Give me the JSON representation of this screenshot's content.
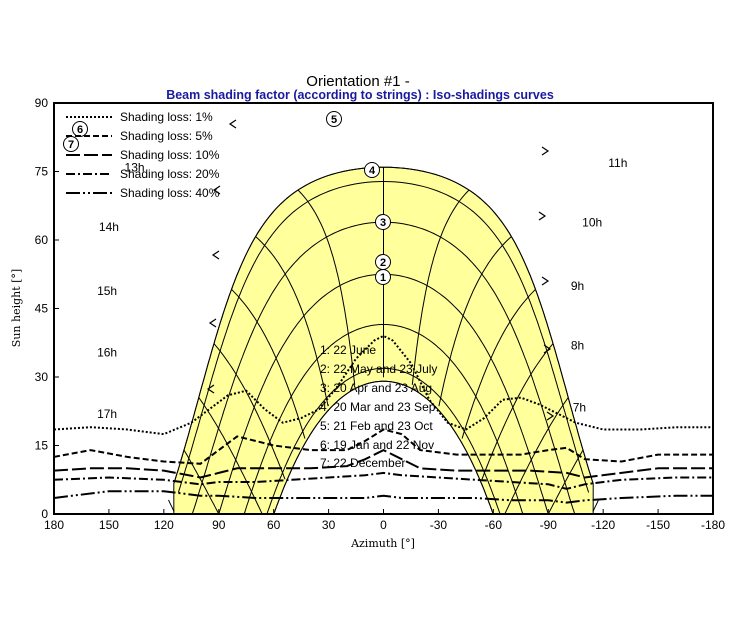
{
  "chart_data": {
    "type": "line",
    "title": "Orientation #1 -",
    "subtitle": "Beam shading factor (according to strings) : Iso-shadings curves",
    "xlabel": "Azimuth [°]",
    "ylabel": "Sun height [°]",
    "xlim": [
      180,
      -180
    ],
    "ylim": [
      0,
      90
    ],
    "x_ticks": [
      180,
      150,
      120,
      90,
      60,
      30,
      0,
      -30,
      -60,
      -90,
      -120,
      -150,
      -180
    ],
    "x_tick_labels": [
      "180",
      "150",
      "120",
      "90",
      "60",
      "30",
      "0",
      "-30",
      "-60",
      "-90",
      "-120",
      "-150",
      "-180"
    ],
    "y_ticks": [
      0,
      15,
      30,
      45,
      60,
      75,
      90
    ],
    "y_tick_labels": [
      "0",
      "15",
      "30",
      "45",
      "60",
      "75",
      "90"
    ],
    "grid": false,
    "legend_position": "top-left",
    "legend": [
      "Shading loss: 1%",
      "Shading loss: 5%",
      "Shading loss: 10%",
      "Shading loss: 20%",
      "Shading loss: 40%"
    ],
    "sun_paths": [
      {
        "label": "1",
        "name": "22 June",
        "noon_height": 52.5
      },
      {
        "label": "2",
        "name": "22 May and 23 July",
        "noon_height": 55.5
      },
      {
        "label": "3",
        "name": "20 Apr and 23 Aug",
        "noon_height": 64
      },
      {
        "label": "4",
        "name": "20 Mar and 23 Sep",
        "noon_height": 75.5
      },
      {
        "label": "5",
        "name": "21 Feb and 23 Oct",
        "noon_height": 86.5
      },
      {
        "label": "6",
        "name": "19 Jan and 22 Nov",
        "noon_height": 84.5
      },
      {
        "label": "7",
        "name": "22 December",
        "noon_height": 81.5
      }
    ],
    "date_legend": [
      "1: 22 June",
      "2: 22 May and 23 July",
      "3: 20 Apr and 23 Aug",
      "4: 20 Mar and 23 Sep",
      "5: 21 Feb and 23 Oct",
      "6: 19 Jan and 22 Nov",
      "7: 22 December"
    ],
    "hour_labels": [
      {
        "text": "13h",
        "x": 136,
        "y": 75
      },
      {
        "text": "14h",
        "x": 150,
        "y": 62
      },
      {
        "text": "15h",
        "x": 151,
        "y": 48
      },
      {
        "text": "16h",
        "x": 151,
        "y": 34.5
      },
      {
        "text": "17h",
        "x": 151,
        "y": 21
      },
      {
        "text": "11h",
        "x": -128,
        "y": 76
      },
      {
        "text": "10h",
        "x": -114,
        "y": 63
      },
      {
        "text": "9h",
        "x": -106,
        "y": 49
      },
      {
        "text": "8h",
        "x": -106,
        "y": 36
      },
      {
        "text": "7h",
        "x": -107,
        "y": 22.5
      }
    ],
    "iso_shading_curves": [
      {
        "name": "Shading loss: 1%",
        "dash": "dotted",
        "x": [
          180,
          160,
          140,
          120,
          105,
          95,
          85,
          75,
          65,
          55,
          45,
          35,
          25,
          15,
          5,
          0,
          -5,
          -15,
          -25,
          -35,
          -45,
          -55,
          -65,
          -75,
          -85,
          -95,
          -105,
          -120,
          -140,
          -160,
          -180
        ],
        "y": [
          18.5,
          19,
          18.5,
          17.5,
          20,
          23,
          26,
          27,
          23,
          20,
          21,
          23,
          28,
          34,
          38,
          39,
          38,
          33,
          25,
          20,
          18.5,
          21,
          25,
          25.5,
          24,
          22,
          20,
          18.5,
          18.5,
          19,
          19
        ]
      },
      {
        "name": "Shading loss: 5%",
        "dash": "short-dash",
        "x": [
          180,
          160,
          140,
          120,
          100,
          90,
          80,
          70,
          60,
          40,
          20,
          10,
          0,
          -10,
          -20,
          -40,
          -60,
          -75,
          -90,
          -100,
          -110,
          -130,
          -150,
          -180
        ],
        "y": [
          12.5,
          14,
          12.5,
          11.5,
          11,
          14,
          17,
          16,
          15,
          14,
          14,
          16,
          18.5,
          17.5,
          14,
          13,
          13,
          13,
          14,
          14.5,
          12,
          11.5,
          13,
          13
        ]
      },
      {
        "name": "Shading loss: 10%",
        "dash": "long-dash",
        "x": [
          180,
          160,
          140,
          120,
          100,
          90,
          80,
          60,
          40,
          20,
          10,
          0,
          -10,
          -20,
          -40,
          -60,
          -80,
          -100,
          -110,
          -130,
          -150,
          -180
        ],
        "y": [
          9.5,
          10,
          10,
          9.5,
          8,
          9,
          10,
          10,
          10,
          10.5,
          12,
          14,
          12,
          10,
          9.5,
          9.5,
          9.5,
          9,
          8,
          9,
          10,
          10
        ]
      },
      {
        "name": "Shading loss: 20%",
        "dash": "dash-dot",
        "x": [
          180,
          150,
          120,
          100,
          90,
          70,
          50,
          30,
          10,
          0,
          -10,
          -30,
          -50,
          -70,
          -90,
          -100,
          -110,
          -130,
          -160,
          -180
        ],
        "y": [
          7.5,
          8,
          7.5,
          6.5,
          7,
          7,
          7.5,
          8,
          8.5,
          9,
          8.5,
          8,
          7.5,
          7,
          6.5,
          5.5,
          6.5,
          7.5,
          8,
          8
        ]
      },
      {
        "name": "Shading loss: 40%",
        "dash": "dash-dot-dot",
        "x": [
          180,
          150,
          120,
          100,
          90,
          70,
          50,
          30,
          10,
          0,
          -10,
          -30,
          -50,
          -70,
          -90,
          -100,
          -110,
          -130,
          -160,
          -180
        ],
        "y": [
          3.5,
          5,
          5,
          4,
          4,
          3.5,
          3.5,
          3.5,
          3.5,
          4,
          3.5,
          3.5,
          3.5,
          3,
          3,
          2.5,
          3,
          3.5,
          4,
          4
        ]
      }
    ]
  }
}
